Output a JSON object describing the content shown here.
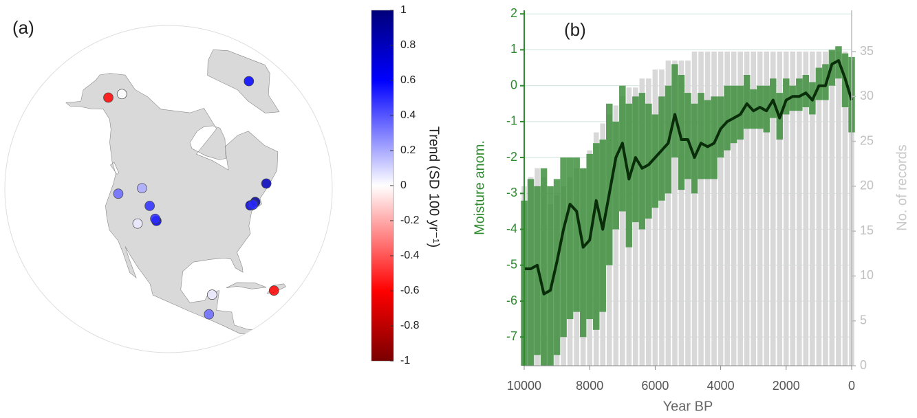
{
  "chart_data": [
    {
      "type": "map",
      "label": "(a)",
      "colorbar_label": "Trend (SD 100 yr⁻¹)",
      "clim": [
        -1,
        1
      ],
      "cticks": [
        -1,
        -0.8,
        -0.6,
        -0.4,
        -0.2,
        0,
        0.2,
        0.4,
        0.6,
        0.8,
        1
      ],
      "colormap": [
        {
          "value": -1,
          "color": "#7a0000"
        },
        {
          "value": -0.6,
          "color": "#ff0000"
        },
        {
          "value": 0,
          "color": "#ffffff"
        },
        {
          "value": 0.6,
          "color": "#0000ff"
        },
        {
          "value": 1,
          "color": "#00007a"
        }
      ],
      "sites": [
        {
          "lon": -150,
          "lat": 64,
          "trend": -0.6
        },
        {
          "lon": -145,
          "lat": 67,
          "trend": 0
        },
        {
          "lon": -42,
          "lat": 71,
          "trend": 0.6
        },
        {
          "lon": -66,
          "lat": 46,
          "trend": 0.8
        },
        {
          "lon": -74,
          "lat": 42,
          "trend": 0.7
        },
        {
          "lon": -72,
          "lat": 42.5,
          "trend": 0.9
        },
        {
          "lon": -73,
          "lat": 42,
          "trend": 0.5
        },
        {
          "lon": -121,
          "lat": 44,
          "trend": 0.35
        },
        {
          "lon": -113,
          "lat": 47,
          "trend": 0.2
        },
        {
          "lon": -109,
          "lat": 43,
          "trend": 0.5
        },
        {
          "lon": -106,
          "lat": 39.5,
          "trend": 0.65
        },
        {
          "lon": -106.5,
          "lat": 40,
          "trend": 0.5
        },
        {
          "lon": -112,
          "lat": 38,
          "trend": 0.05
        },
        {
          "lon": -90,
          "lat": 15,
          "trend": 0.35
        },
        {
          "lon": -89,
          "lat": 20.5,
          "trend": 0.05
        },
        {
          "lon": -72,
          "lat": 18.5,
          "trend": -0.6
        }
      ]
    },
    {
      "type": "line",
      "label": "(b)",
      "xlabel": "Year BP",
      "ylabel": "Moisture anom.",
      "y2label": "No. of records",
      "x": [
        10000,
        9800,
        9600,
        9400,
        9200,
        9000,
        8800,
        8600,
        8400,
        8200,
        8000,
        7800,
        7600,
        7400,
        7200,
        7000,
        6800,
        6600,
        6400,
        6200,
        6000,
        5800,
        5600,
        5400,
        5200,
        5000,
        4800,
        4600,
        4400,
        4200,
        4000,
        3800,
        3600,
        3400,
        3200,
        3000,
        2800,
        2600,
        2400,
        2200,
        2000,
        1800,
        1600,
        1400,
        1200,
        1000,
        800,
        600,
        400,
        200,
        0
      ],
      "xlim": [
        10000,
        0
      ],
      "xticks": [
        10000,
        8000,
        6000,
        4000,
        2000,
        0
      ],
      "ylim": [
        -7.8,
        2.1
      ],
      "yticks": [
        -7,
        -6,
        -5,
        -4,
        -3,
        -2,
        -1,
        0,
        1,
        2
      ],
      "y2lim": [
        0,
        39.6
      ],
      "y2ticks": [
        0,
        5,
        10,
        15,
        20,
        25,
        30,
        35
      ],
      "grid": true,
      "series": [
        {
          "type": "bar",
          "axis": "y2",
          "color": "#d8d8d8",
          "values": [
            20,
            21,
            22,
            21,
            18,
            19,
            20,
            21,
            22,
            22,
            24,
            26,
            27,
            28,
            29,
            30,
            31,
            31,
            32,
            32,
            33,
            33,
            34,
            34,
            34,
            34,
            35,
            35,
            35,
            35,
            35,
            35,
            35,
            35,
            35,
            35,
            35,
            35,
            35,
            35,
            35,
            35,
            35,
            35,
            35,
            35,
            35,
            35,
            35,
            35,
            34
          ]
        },
        {
          "type": "band",
          "color": "#3f8f3f",
          "lower": [
            -7.8,
            -7.8,
            -7.5,
            -7.8,
            -7.8,
            -7.5,
            -7.0,
            -6.5,
            -6.3,
            -7.0,
            -6.5,
            -6.8,
            -6.3,
            -5.0,
            -4.0,
            -3.5,
            -4.5,
            -3.8,
            -4.0,
            -3.7,
            -3.4,
            -3.2,
            -3.0,
            -2.0,
            -2.9,
            -2.6,
            -3.0,
            -2.6,
            -2.6,
            -2.6,
            -2.0,
            -1.8,
            -1.6,
            -1.5,
            -1.2,
            -1.2,
            -1.2,
            -1.3,
            -0.9,
            -1.5,
            -0.8,
            -0.7,
            -0.7,
            -0.6,
            -0.8,
            -0.4,
            -0.4,
            0.0,
            0.2,
            -0.6,
            -1.3
          ],
          "upper": [
            -3.2,
            -2.6,
            -2.8,
            -2.3,
            -2.8,
            -2.6,
            -2.0,
            -2.0,
            -2.0,
            -2.3,
            -1.9,
            -1.6,
            -1.5,
            -0.5,
            -1.0,
            0.0,
            -0.5,
            -0.3,
            -0.2,
            -0.5,
            -0.8,
            -0.3,
            0.0,
            0.6,
            0.3,
            -0.2,
            -0.5,
            -0.2,
            -0.4,
            -0.3,
            -0.3,
            0.0,
            0.0,
            0.0,
            0.3,
            -0.1,
            0.0,
            0.0,
            0.2,
            -0.2,
            0.2,
            0.0,
            0.2,
            0.3,
            0.1,
            0.5,
            0.6,
            1.0,
            1.1,
            0.9,
            0.8
          ]
        },
        {
          "type": "line",
          "color": "#0a2d0a",
          "values": [
            -5.1,
            -5.1,
            -5.0,
            -5.8,
            -5.7,
            -4.9,
            -4.0,
            -3.3,
            -3.5,
            -4.5,
            -4.3,
            -3.2,
            -4.0,
            -3.0,
            -2.0,
            -1.6,
            -2.6,
            -2.0,
            -2.3,
            -2.2,
            -2.0,
            -1.8,
            -1.6,
            -0.8,
            -1.5,
            -1.5,
            -2.0,
            -1.6,
            -1.7,
            -1.6,
            -1.2,
            -1.0,
            -0.9,
            -0.8,
            -0.5,
            -0.7,
            -0.6,
            -0.7,
            -0.4,
            -0.9,
            -0.4,
            -0.3,
            -0.3,
            -0.2,
            -0.4,
            0.0,
            0.0,
            0.6,
            0.7,
            0.2,
            -0.4
          ]
        }
      ]
    }
  ]
}
